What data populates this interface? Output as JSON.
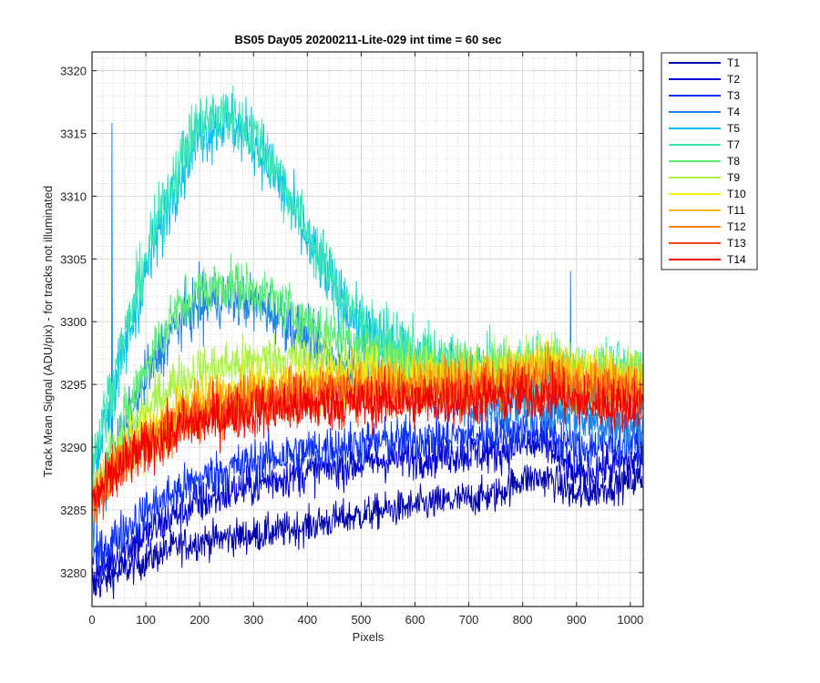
{
  "chart_data": {
    "type": "line",
    "title": "BS05 Day05 20200211-Lite-029 int time = 60 sec",
    "xlabel": "Pixels",
    "ylabel": "Track Mean Signal (ADU/pix) - for tracks not illuminated",
    "xlim": [
      0,
      1024
    ],
    "ylim": [
      3277.3,
      3321.5
    ],
    "xticks": [
      0,
      100,
      200,
      300,
      400,
      500,
      600,
      700,
      800,
      900,
      1000
    ],
    "yticks": [
      3280,
      3285,
      3290,
      3295,
      3300,
      3305,
      3310,
      3315,
      3320
    ],
    "grid": true,
    "minor_grid": true,
    "legend_position": "outside-top-right",
    "x_step": 1,
    "noise_note": "each series is a noisy per-pixel trace; values below are the approximate mean trend at the listed anchor pixels",
    "anchor_x": [
      0,
      50,
      100,
      150,
      200,
      250,
      300,
      350,
      400,
      450,
      500,
      550,
      600,
      650,
      700,
      750,
      800,
      850,
      900,
      950,
      1024
    ],
    "series": [
      {
        "name": "T1",
        "color": "#0000AA",
        "noise": 1.0,
        "values": [
          3278.8,
          3280.0,
          3281.0,
          3282.0,
          3282.5,
          3282.8,
          3283.0,
          3283.3,
          3283.7,
          3284.2,
          3284.6,
          3285.0,
          3285.3,
          3285.6,
          3285.9,
          3286.2,
          3287.5,
          3287.5,
          3286.0,
          3286.8,
          3287.5
        ]
      },
      {
        "name": "T2",
        "color": "#0000CD",
        "noise": 1.2,
        "values": [
          3279.5,
          3281.5,
          3283.0,
          3284.5,
          3285.5,
          3286.3,
          3287.0,
          3287.5,
          3288.0,
          3288.4,
          3288.7,
          3289.0,
          3289.2,
          3289.4,
          3289.5,
          3289.6,
          3290.2,
          3290.0,
          3287.5,
          3288.5,
          3289.0
        ]
      },
      {
        "name": "T3",
        "color": "#0A32F0",
        "noise": 1.3,
        "values": [
          3281.0,
          3283.0,
          3284.8,
          3286.3,
          3287.4,
          3288.2,
          3288.8,
          3289.3,
          3289.7,
          3290.0,
          3290.3,
          3290.5,
          3290.7,
          3290.8,
          3290.9,
          3291.0,
          3291.4,
          3291.3,
          3289.8,
          3290.2,
          3290.5
        ]
      },
      {
        "name": "T4",
        "color": "#1E82E6",
        "noise": 1.6,
        "values": [
          3284.0,
          3290.0,
          3295.5,
          3299.5,
          3301.5,
          3302.0,
          3301.5,
          3300.5,
          3298.5,
          3297.0,
          3296.0,
          3295.2,
          3294.6,
          3294.0,
          3293.5,
          3293.2,
          3293.5,
          3293.3,
          3292.5,
          3292.0,
          3291.5
        ]
      },
      {
        "name": "T5",
        "color": "#00BEF0",
        "noise": 1.8,
        "values": [
          3288.0,
          3296.0,
          3304.0,
          3310.5,
          3315.0,
          3316.0,
          3314.5,
          3311.0,
          3306.5,
          3302.5,
          3299.5,
          3297.8,
          3296.8,
          3296.0,
          3295.5,
          3295.2,
          3295.2,
          3295.0,
          3294.5,
          3294.3,
          3294.5
        ]
      },
      {
        "name": "T7",
        "color": "#3CE6B4",
        "noise": 1.8,
        "values": [
          3289.0,
          3297.0,
          3305.0,
          3311.5,
          3316.0,
          3316.5,
          3315.0,
          3311.5,
          3307.0,
          3303.0,
          3300.0,
          3298.5,
          3297.5,
          3297.0,
          3296.5,
          3296.3,
          3296.5,
          3296.5,
          3296.0,
          3295.8,
          3296.0
        ]
      },
      {
        "name": "T8",
        "color": "#5AEB78",
        "noise": 1.5,
        "values": [
          3285.5,
          3291.0,
          3296.5,
          3300.5,
          3302.5,
          3303.0,
          3302.5,
          3301.5,
          3300.0,
          3299.0,
          3298.2,
          3297.5,
          3297.0,
          3296.5,
          3296.2,
          3296.0,
          3296.2,
          3296.0,
          3295.5,
          3295.3,
          3295.5
        ]
      },
      {
        "name": "T9",
        "color": "#AAF046",
        "noise": 1.5,
        "values": [
          3286.0,
          3290.0,
          3293.0,
          3295.0,
          3296.0,
          3296.5,
          3296.8,
          3297.0,
          3297.0,
          3296.8,
          3296.5,
          3296.3,
          3296.2,
          3296.0,
          3296.0,
          3296.2,
          3296.8,
          3297.0,
          3296.0,
          3295.8,
          3296.0
        ]
      },
      {
        "name": "T10",
        "color": "#F5F00A",
        "noise": 1.5,
        "values": [
          3286.0,
          3289.0,
          3291.0,
          3292.5,
          3293.5,
          3294.2,
          3294.7,
          3295.0,
          3295.2,
          3295.3,
          3295.3,
          3295.4,
          3295.4,
          3295.4,
          3295.5,
          3295.7,
          3296.3,
          3296.8,
          3295.8,
          3295.5,
          3295.5
        ]
      },
      {
        "name": "T11",
        "color": "#FAB914",
        "noise": 1.5,
        "values": [
          3285.8,
          3288.8,
          3290.8,
          3292.2,
          3293.2,
          3293.8,
          3294.3,
          3294.7,
          3294.9,
          3295.0,
          3295.0,
          3295.1,
          3295.1,
          3295.1,
          3295.2,
          3295.4,
          3295.9,
          3296.2,
          3295.4,
          3295.2,
          3295.0
        ]
      },
      {
        "name": "T12",
        "color": "#FA820A",
        "noise": 1.5,
        "values": [
          3285.6,
          3288.6,
          3290.6,
          3291.9,
          3292.8,
          3293.4,
          3293.9,
          3294.2,
          3294.4,
          3294.5,
          3294.6,
          3294.7,
          3294.7,
          3294.8,
          3294.9,
          3295.0,
          3295.4,
          3295.6,
          3294.9,
          3294.7,
          3294.6
        ]
      },
      {
        "name": "T13",
        "color": "#F54619",
        "noise": 1.5,
        "values": [
          3285.5,
          3288.4,
          3290.3,
          3291.6,
          3292.5,
          3293.1,
          3293.5,
          3293.8,
          3294.0,
          3294.1,
          3294.2,
          3294.3,
          3294.3,
          3294.4,
          3294.5,
          3294.6,
          3294.9,
          3295.0,
          3294.4,
          3294.2,
          3294.1
        ]
      },
      {
        "name": "T14",
        "color": "#F00000",
        "noise": 1.5,
        "values": [
          3285.8,
          3288.2,
          3290.0,
          3291.2,
          3292.0,
          3292.5,
          3292.9,
          3293.1,
          3293.3,
          3293.4,
          3293.5,
          3293.6,
          3293.6,
          3293.7,
          3293.8,
          3293.9,
          3294.1,
          3294.2,
          3293.6,
          3293.4,
          3293.3
        ]
      }
    ],
    "spikes": [
      {
        "series": "T4",
        "x": 37,
        "value": 3315.8
      },
      {
        "series": "T4",
        "x": 889,
        "value": 3304.0
      },
      {
        "series": "T4",
        "x": 207,
        "value": 3298.0
      }
    ]
  }
}
